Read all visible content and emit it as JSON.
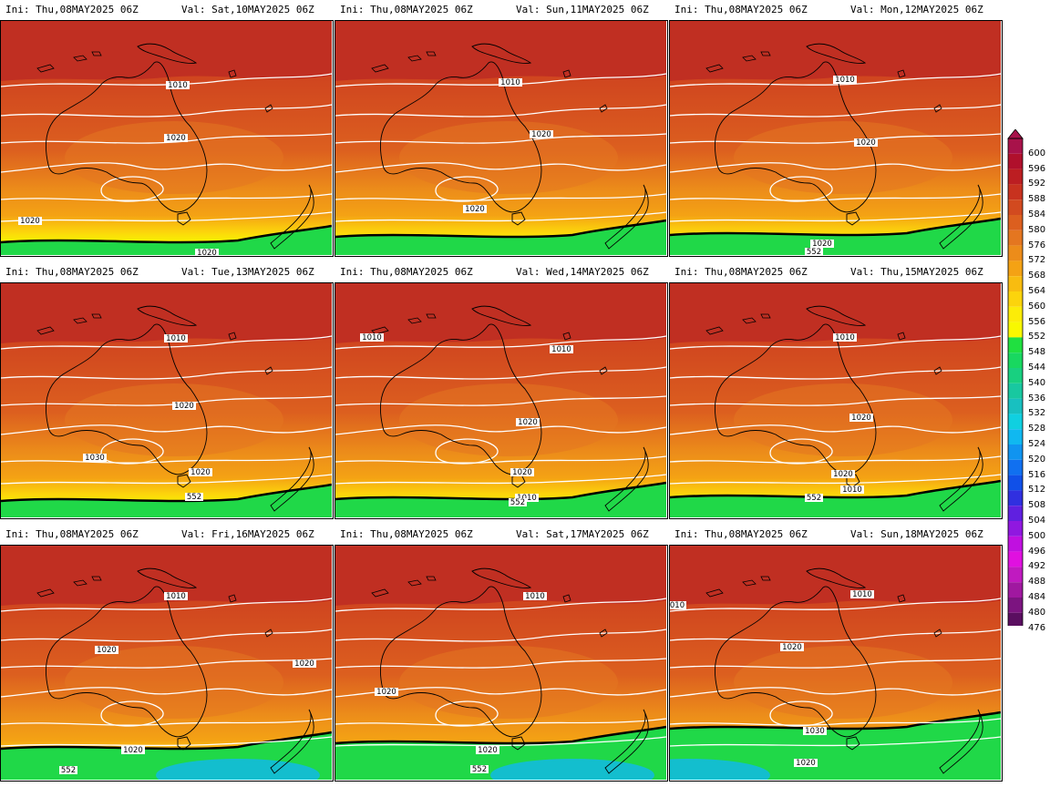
{
  "header_prefix": {
    "ini": "Ini:",
    "val": "Val:"
  },
  "panels": [
    {
      "ini": "Thu,08MAY2025 06Z",
      "val": "Sat,10MAY2025 06Z",
      "labels": [
        {
          "t": "1010",
          "x": 194,
          "y": 73
        },
        {
          "t": "1020",
          "x": 192,
          "y": 131
        },
        {
          "t": "1020",
          "x": 32,
          "y": 222
        },
        {
          "t": "1020",
          "x": 226,
          "y": 257
        }
      ]
    },
    {
      "ini": "Thu,08MAY2025 06Z",
      "val": "Sun,11MAY2025 06Z",
      "labels": [
        {
          "t": "1010",
          "x": 192,
          "y": 70
        },
        {
          "t": "1020",
          "x": 226,
          "y": 127
        },
        {
          "t": "1020",
          "x": 153,
          "y": 209
        }
      ]
    },
    {
      "ini": "Thu,08MAY2025 06Z",
      "val": "Mon,12MAY2025 06Z",
      "labels": [
        {
          "t": "1010",
          "x": 192,
          "y": 67
        },
        {
          "t": "1020",
          "x": 215,
          "y": 136
        },
        {
          "t": "1020",
          "x": 167,
          "y": 247
        },
        {
          "t": "552",
          "x": 158,
          "y": 256
        }
      ]
    },
    {
      "ini": "Thu,08MAY2025 06Z",
      "val": "Tue,13MAY2025 06Z",
      "labels": [
        {
          "t": "1010",
          "x": 192,
          "y": 63
        },
        {
          "t": "1020",
          "x": 201,
          "y": 137
        },
        {
          "t": "1030",
          "x": 103,
          "y": 194
        },
        {
          "t": "1020",
          "x": 219,
          "y": 210
        },
        {
          "t": "552",
          "x": 212,
          "y": 237
        }
      ]
    },
    {
      "ini": "Thu,08MAY2025 06Z",
      "val": "Wed,14MAY2025 06Z",
      "labels": [
        {
          "t": "1010",
          "x": 40,
          "y": 62
        },
        {
          "t": "1010",
          "x": 248,
          "y": 75
        },
        {
          "t": "1020",
          "x": 211,
          "y": 155
        },
        {
          "t": "1020",
          "x": 205,
          "y": 210
        },
        {
          "t": "1010",
          "x": 210,
          "y": 238
        },
        {
          "t": "552",
          "x": 200,
          "y": 243
        }
      ]
    },
    {
      "ini": "Thu,08MAY2025 06Z",
      "val": "Thu,15MAY2025 06Z",
      "labels": [
        {
          "t": "1010",
          "x": 192,
          "y": 62
        },
        {
          "t": "1020",
          "x": 210,
          "y": 150
        },
        {
          "t": "1020",
          "x": 190,
          "y": 212
        },
        {
          "t": "1010",
          "x": 200,
          "y": 229
        },
        {
          "t": "552",
          "x": 158,
          "y": 238
        }
      ]
    },
    {
      "ini": "Thu,08MAY2025 06Z",
      "val": "Fri,16MAY2025 06Z",
      "labels": [
        {
          "t": "1010",
          "x": 192,
          "y": 58
        },
        {
          "t": "1020",
          "x": 116,
          "y": 117
        },
        {
          "t": "1020",
          "x": 333,
          "y": 132
        },
        {
          "t": "1020",
          "x": 145,
          "y": 227
        },
        {
          "t": "552",
          "x": 74,
          "y": 249
        }
      ]
    },
    {
      "ini": "Thu,08MAY2025 06Z",
      "val": "Sat,17MAY2025 06Z",
      "labels": [
        {
          "t": "1010",
          "x": 219,
          "y": 58
        },
        {
          "t": "1020",
          "x": 56,
          "y": 163
        },
        {
          "t": "1020",
          "x": 167,
          "y": 227
        },
        {
          "t": "552",
          "x": 158,
          "y": 248
        }
      ]
    },
    {
      "ini": "Thu,08MAY2025 06Z",
      "val": "Sun,18MAY2025 06Z",
      "labels": [
        {
          "t": "010",
          "x": 8,
          "y": 68
        },
        {
          "t": "1010",
          "x": 211,
          "y": 56
        },
        {
          "t": "1020",
          "x": 134,
          "y": 114
        },
        {
          "t": "1030",
          "x": 159,
          "y": 206
        },
        {
          "t": "1020",
          "x": 149,
          "y": 241
        }
      ]
    }
  ],
  "colorbar": {
    "levels": [
      "600",
      "596",
      "592",
      "588",
      "584",
      "580",
      "576",
      "572",
      "568",
      "564",
      "560",
      "556",
      "552",
      "548",
      "544",
      "540",
      "536",
      "532",
      "528",
      "524",
      "520",
      "516",
      "512",
      "508",
      "504",
      "500",
      "496",
      "492",
      "488",
      "484",
      "480",
      "476"
    ],
    "colors": [
      "#a8124a",
      "#b0102c",
      "#bc1e22",
      "#c8321f",
      "#d24a1f",
      "#dc5f1f",
      "#e47620",
      "#ec8c1a",
      "#f4a214",
      "#f8bc10",
      "#fcd40c",
      "#fcec08",
      "#f8f800",
      "#20e040",
      "#18d860",
      "#18d080",
      "#18c8a0",
      "#18c0c0",
      "#10d0e0",
      "#10b8f0",
      "#1094f0",
      "#1070f0",
      "#1050e8",
      "#3030e0",
      "#6020e0",
      "#9018e0",
      "#c010e0",
      "#e010e0",
      "#c01ac0",
      "#a018a0",
      "#7c1480",
      "#5a0e60"
    ],
    "unit_note": ""
  }
}
